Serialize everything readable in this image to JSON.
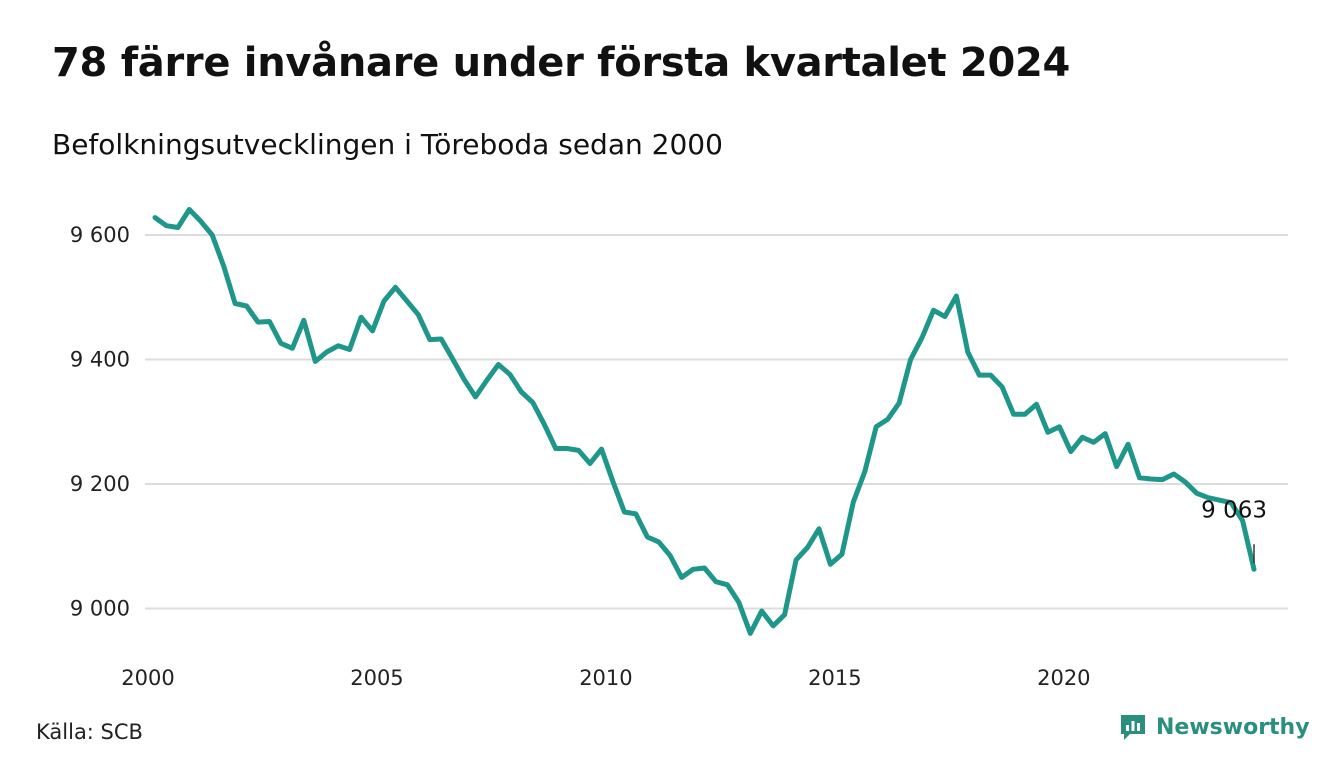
{
  "title": "78 färre invånare under första kvartalet 2024",
  "subtitle": "Befolkningsutvecklingen i Töreboda sedan 2000",
  "source": "Källa: SCB",
  "brand": {
    "name": "Newsworthy",
    "icon": "newsworthy-logo-icon",
    "color": "#2a8f7f"
  },
  "chart_data": {
    "type": "line",
    "title": "78 färre invånare under första kvartalet 2024",
    "subtitle": "Befolkningsutvecklingen i Töreboda sedan 2000",
    "xlabel": "",
    "ylabel": "",
    "xlim": [
      2000.0,
      2025.0
    ],
    "ylim": [
      8930,
      9660
    ],
    "x_ticks": [
      2000,
      2005,
      2010,
      2015,
      2020
    ],
    "x_tick_labels": [
      "2000",
      "2005",
      "2010",
      "2015",
      "2020"
    ],
    "y_ticks": [
      9000,
      9200,
      9400,
      9600
    ],
    "y_tick_labels": [
      "9 000",
      "9 200",
      "9 400",
      "9 600"
    ],
    "grid": "horizontal",
    "line_color": "#1f968a",
    "annotation": {
      "text": "9 063",
      "x": 2024.0,
      "y": 9063
    },
    "series": [
      {
        "x": [
          2000.0,
          2000.25,
          2000.5,
          2000.75,
          2001.0,
          2001.25,
          2001.5,
          2001.75,
          2002.0,
          2002.25,
          2002.5,
          2002.75,
          2003.0,
          2003.25,
          2003.5,
          2003.75,
          2004.0,
          2004.25,
          2004.5,
          2004.75,
          2005.0,
          2005.25,
          2005.5,
          2005.75,
          2006.0,
          2006.25,
          2006.5,
          2006.75,
          2007.0,
          2007.25,
          2007.5,
          2007.75,
          2008.0,
          2008.25,
          2008.5,
          2008.75,
          2009.0,
          2009.25,
          2009.5,
          2009.75,
          2010.0,
          2010.25,
          2010.5,
          2010.75,
          2011.0,
          2011.25,
          2011.5,
          2011.75,
          2012.0,
          2012.25,
          2012.5,
          2012.75,
          2013.0,
          2013.25,
          2013.5,
          2013.75,
          2014.0,
          2014.25,
          2014.5,
          2014.75,
          2015.0,
          2015.25,
          2015.5,
          2015.75,
          2016.0,
          2016.25,
          2016.5,
          2016.75,
          2017.0,
          2017.25,
          2017.5,
          2017.75,
          2018.0,
          2018.25,
          2018.5,
          2018.75,
          2019.0,
          2019.25,
          2019.5,
          2019.75,
          2020.0,
          2020.25,
          2020.5,
          2020.75,
          2021.0,
          2021.25,
          2021.5,
          2021.75,
          2022.0,
          2022.25,
          2022.5,
          2022.75,
          2023.0,
          2023.25,
          2023.5,
          2023.75,
          2024.0
        ],
        "y": [
          9628,
          9615,
          9612,
          9641,
          9622,
          9600,
          9550,
          9490,
          9486,
          9460,
          9461,
          9426,
          9418,
          9463,
          9397,
          9412,
          9422,
          9416,
          9468,
          9446,
          9494,
          9516,
          9494,
          9472,
          9432,
          9433,
          9401,
          9368,
          9340,
          9367,
          9392,
          9376,
          9348,
          9331,
          9296,
          9257,
          9257,
          9254,
          9233,
          9256,
          9204,
          9155,
          9152,
          9115,
          9107,
          9085,
          9050,
          9063,
          9065,
          9043,
          9038,
          9010,
          8960,
          8996,
          8972,
          8990,
          9078,
          9098,
          9128,
          9071,
          9087,
          9171,
          9220,
          9292,
          9304,
          9330,
          9400,
          9435,
          9479,
          9469,
          9502,
          9412,
          9375,
          9375,
          9356,
          9312,
          9312,
          9328,
          9283,
          9292,
          9252,
          9275,
          9267,
          9281,
          9228,
          9264,
          9210,
          9208,
          9207,
          9216,
          9203,
          9185,
          9178,
          9174,
          9170,
          9141,
          9063
        ]
      }
    ]
  }
}
